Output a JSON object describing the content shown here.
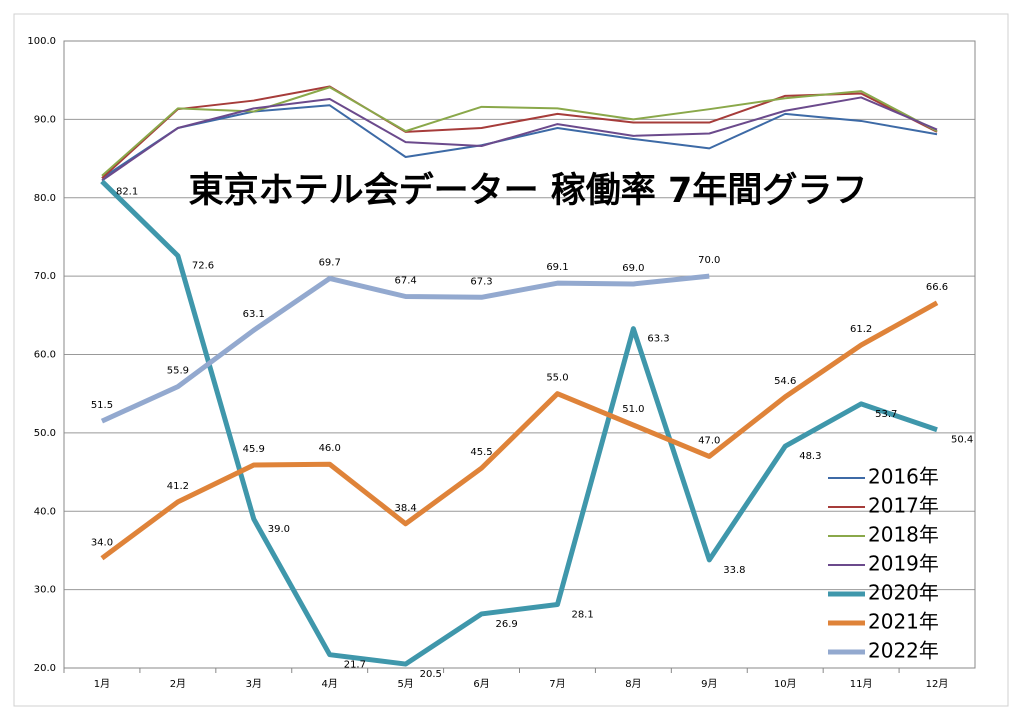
{
  "chart_data": {
    "type": "line",
    "title": "東京ホテル会データー 稼働率 7年間グラフ",
    "categories": [
      "1月",
      "2月",
      "3月",
      "4月",
      "5月",
      "6月",
      "7月",
      "8月",
      "9月",
      "10月",
      "11月",
      "12月"
    ],
    "ylim": [
      20,
      100
    ],
    "yticks": [
      {
        "value": 20,
        "label": "20.0"
      },
      {
        "value": 30,
        "label": "30.0"
      },
      {
        "value": 40,
        "label": "40.0"
      },
      {
        "value": 50,
        "label": "50.0"
      },
      {
        "value": 60,
        "label": "60.0"
      },
      {
        "value": 70,
        "label": "70.0"
      },
      {
        "value": 80,
        "label": "80.0"
      },
      {
        "value": 90,
        "label": "90.0"
      },
      {
        "value": 100,
        "label": "100.0"
      }
    ],
    "grid": true,
    "legend": "lower right",
    "series": [
      {
        "name": "2016年",
        "color": "#3d6aa6",
        "line_width": 2,
        "values": [
          82.5,
          88.9,
          91.0,
          91.8,
          85.2,
          86.7,
          88.9,
          87.5,
          86.3,
          90.7,
          89.8,
          88.1
        ]
      },
      {
        "name": "2017年",
        "color": "#a63c3a",
        "line_width": 2,
        "values": [
          82.5,
          91.3,
          92.4,
          94.2,
          88.4,
          88.9,
          90.7,
          89.6,
          89.6,
          93.0,
          93.3,
          88.4
        ]
      },
      {
        "name": "2018年",
        "color": "#8aa84a",
        "line_width": 2,
        "values": [
          82.8,
          91.4,
          91.0,
          94.1,
          88.5,
          91.6,
          91.4,
          90.0,
          91.3,
          92.7,
          93.6,
          88.5
        ]
      },
      {
        "name": "2019年",
        "color": "#6b4a8c",
        "line_width": 2,
        "values": [
          82.2,
          88.9,
          91.4,
          92.6,
          87.1,
          86.6,
          89.4,
          87.9,
          88.2,
          91.1,
          92.8,
          88.7
        ]
      },
      {
        "name": "2020年",
        "color": "#3f97ab",
        "line_width": 5,
        "values": [
          82.1,
          72.6,
          39.0,
          21.7,
          20.5,
          26.9,
          28.1,
          63.3,
          33.8,
          48.3,
          53.7,
          50.4
        ],
        "value_labels": [
          "82.1",
          "72.6",
          "39.0",
          "21.7",
          "20.5",
          "26.9",
          "28.1",
          "63.3",
          "33.8",
          "48.3",
          "53.7",
          "50.4"
        ]
      },
      {
        "name": "2021年",
        "color": "#df8339",
        "line_width": 5,
        "values": [
          34.0,
          41.2,
          45.9,
          46.0,
          38.4,
          45.5,
          55.0,
          51.0,
          47.0,
          54.6,
          61.2,
          66.6
        ],
        "value_labels": [
          "34.0",
          "41.2",
          "45.9",
          "46.0",
          "38.4",
          "45.5",
          "55.0",
          "51.0",
          "47.0",
          "54.6",
          "61.2",
          "66.6"
        ]
      },
      {
        "name": "2022年",
        "color": "#93a9cf",
        "line_width": 5,
        "values": [
          51.5,
          55.9,
          63.1,
          69.7,
          67.4,
          67.3,
          69.1,
          69.0,
          70.0,
          null,
          null,
          null
        ],
        "value_labels": [
          "51.5",
          "55.9",
          "63.1",
          "69.7",
          "67.4",
          "67.3",
          "69.1",
          "69.0",
          "70.0",
          null,
          null,
          null
        ]
      }
    ]
  }
}
